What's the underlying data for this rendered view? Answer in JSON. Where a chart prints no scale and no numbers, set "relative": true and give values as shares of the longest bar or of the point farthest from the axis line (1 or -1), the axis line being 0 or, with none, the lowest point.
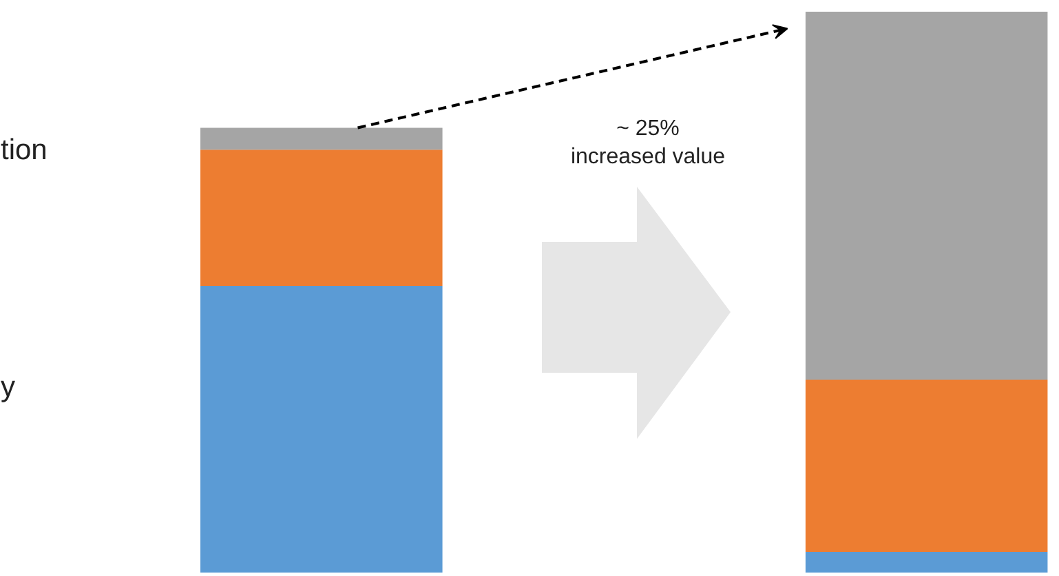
{
  "chart_data": {
    "type": "bar",
    "stacked": true,
    "relative": true,
    "categories": [
      null,
      null
    ],
    "series": [
      {
        "color": "#5b9bd5",
        "values": [
          0.511,
          0.037
        ]
      },
      {
        "color": "#ed7d31",
        "values": [
          0.243,
          0.307
        ]
      },
      {
        "color": "#a5a5a5",
        "values": [
          0.039,
          0.656
        ]
      }
    ],
    "annotations": [
      "tion",
      "y",
      {
        "text": "~ 25%\nincreased value"
      }
    ],
    "grid": false
  }
}
